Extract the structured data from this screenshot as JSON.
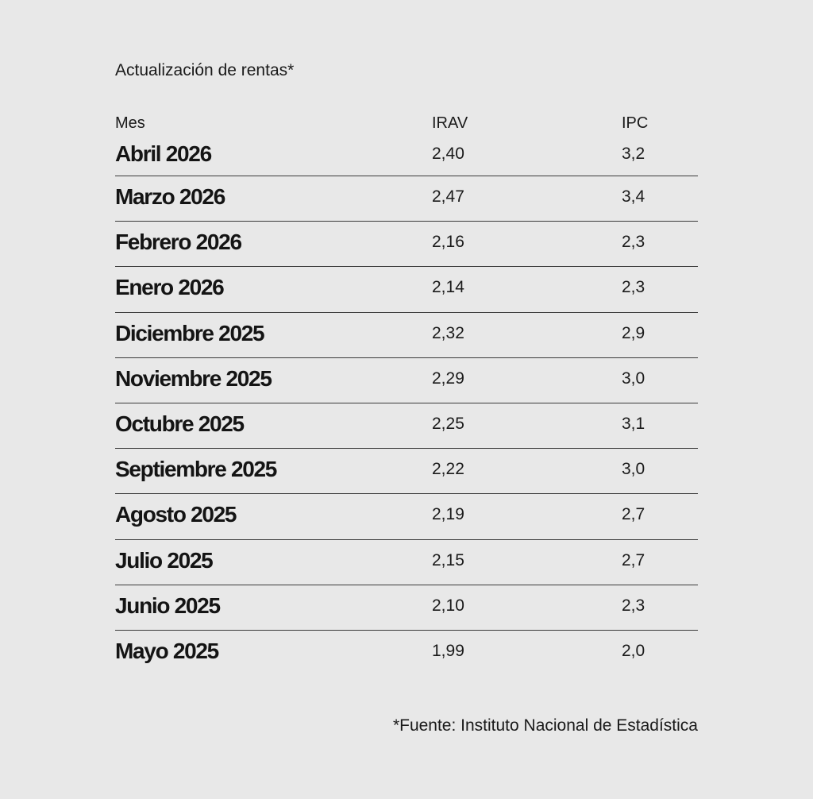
{
  "title": "Actualización de rentas*",
  "columns": {
    "mes": "Mes",
    "irav": "IRAV",
    "ipc": "IPC"
  },
  "chart_data": {
    "type": "table",
    "title": "Actualización de rentas*",
    "columns": [
      "Mes",
      "IRAV",
      "IPC"
    ],
    "rows": [
      {
        "mes": "Abril 2026",
        "irav": "2,40",
        "ipc": "3,2"
      },
      {
        "mes": "Marzo 2026",
        "irav": "2,47",
        "ipc": "3,4"
      },
      {
        "mes": "Febrero 2026",
        "irav": "2,16",
        "ipc": "2,3"
      },
      {
        "mes": "Enero 2026",
        "irav": "2,14",
        "ipc": "2,3"
      },
      {
        "mes": "Diciembre 2025",
        "irav": "2,32",
        "ipc": "2,9"
      },
      {
        "mes": "Noviembre 2025",
        "irav": "2,29",
        "ipc": "3,0"
      },
      {
        "mes": "Octubre 2025",
        "irav": "2,25",
        "ipc": "3,1"
      },
      {
        "mes": "Septiembre 2025",
        "irav": "2,22",
        "ipc": "3,0"
      },
      {
        "mes": "Agosto 2025",
        "irav": "2,19",
        "ipc": "2,7"
      },
      {
        "mes": "Julio 2025",
        "irav": "2,15",
        "ipc": "2,7"
      },
      {
        "mes": "Junio 2025",
        "irav": "2,10",
        "ipc": "2,3"
      },
      {
        "mes": "Mayo 2025",
        "irav": "1,99",
        "ipc": "2,0"
      }
    ]
  },
  "footer": "*Fuente: Instituto Nacional de Estadística",
  "colors": {
    "background": "#e8e8e8",
    "text": "#1a1a1a",
    "divider": "#3a3a3a"
  }
}
